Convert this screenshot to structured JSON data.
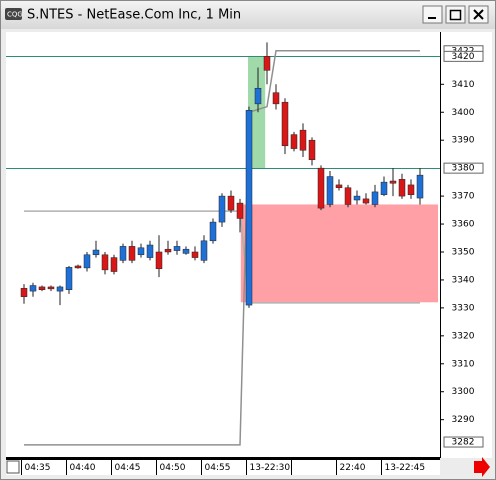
{
  "window": {
    "title": "S.NTES - NetEase.Com Inc, 1 Min"
  },
  "chart_data": {
    "type": "candlestick",
    "categories": [
      "04:35",
      null,
      null,
      null,
      null,
      "04:40",
      null,
      null,
      null,
      null,
      "04:45",
      null,
      null,
      null,
      null,
      "04:50",
      null,
      null,
      null,
      null,
      "04:55",
      null,
      null,
      null,
      null,
      "13-22:30",
      null,
      null,
      null,
      null,
      null,
      null,
      null,
      null,
      null,
      "22:40",
      null,
      null,
      null,
      null,
      "13-22:45",
      null,
      null,
      null,
      null
    ],
    "open": [
      3337,
      3336,
      3337.5,
      3337.5,
      3336,
      3336.5,
      3345,
      3344.3,
      3349,
      3349,
      3348,
      3347,
      3352,
      3349,
      3348,
      3350,
      3351,
      3350.5,
      3349.5,
      3350,
      3347,
      3354,
      3360.7,
      3370,
      3367.5,
      3331,
      3403,
      3420,
      3407,
      3403.6,
      3392,
      3393.6,
      3390,
      3380,
      3367,
      3374,
      3373,
      3368.6,
      3369,
      3367,
      3370.5,
      3375.4,
      3376,
      3374,
      3369.3
    ],
    "high": [
      3338.5,
      3339,
      3338,
      3338,
      3338,
      3345,
      3345.5,
      3350,
      3354,
      3350,
      3349,
      3353,
      3354,
      3353,
      3354,
      3356,
      3354,
      3354,
      3352,
      3352,
      3356,
      3362,
      3371,
      3372,
      3369,
      3402,
      3416,
      3425,
      3410,
      3405,
      3393,
      3396,
      3391,
      3381,
      3379,
      3376,
      3374,
      3372,
      3371,
      3374,
      3377,
      3380,
      3378,
      3376,
      3380
    ],
    "low": [
      3331.5,
      3334,
      3336,
      3336,
      3331,
      3335,
      3344,
      3343,
      3348,
      3342,
      3342,
      3346,
      3346,
      3348,
      3347,
      3341,
      3349,
      3349,
      3349,
      3347,
      3346,
      3353,
      3359,
      3364,
      3357,
      3330,
      3400,
      3410,
      3401,
      3385,
      3386,
      3384,
      3381,
      3365,
      3366,
      3372,
      3366,
      3367,
      3367,
      3366,
      3370,
      3370,
      3369,
      3369,
      3367
    ],
    "close": [
      3334,
      3338,
      3336.5,
      3336.8,
      3337.5,
      3344.5,
      3344.3,
      3349,
      3350.7,
      3343.6,
      3343,
      3352,
      3347,
      3351.5,
      3352.5,
      3344,
      3350,
      3352,
      3351,
      3348,
      3354,
      3360.7,
      3370,
      3365,
      3362,
      3400.7,
      3408.6,
      3415,
      3403,
      3388,
      3387,
      3386.4,
      3383,
      3365.7,
      3377,
      3373,
      3367,
      3370,
      3367.5,
      3371.5,
      3375,
      3374.6,
      3370,
      3370.5,
      3377.5
    ],
    "up_color": "#1e6fd6",
    "down_color": "#d81818",
    "series": [
      {
        "color": "#b0b0b0",
        "values": [
          3364.6,
          3364.6,
          3364.6,
          3364.6,
          3364.6,
          3364.6,
          3364.6,
          3364.6,
          3364.6,
          3364.6,
          3364.6,
          3364.6,
          3364.6,
          3364.6,
          3364.6,
          3364.6,
          3364.6,
          3364.6,
          3364.6,
          3364.6,
          3364.6,
          3364.6,
          3364.6,
          3364.6,
          3364.6,
          3331.8,
          3331.8,
          3331.8,
          3331.8,
          3331.8,
          3331.8,
          3331.8,
          3331.8,
          3331.8,
          3331.8,
          3331.8,
          3331.8,
          3331.8,
          3331.8,
          3331.8,
          3331.8,
          3331.8,
          3331.8,
          3331.8,
          3331.8
        ]
      },
      {
        "color": "#909090",
        "values": [
          3281,
          3281,
          3281,
          3281,
          3281,
          3281,
          3281,
          3281,
          3281,
          3281,
          3281,
          3281,
          3281,
          3281,
          3281,
          3281,
          3281,
          3281,
          3281,
          3281,
          3281,
          3281,
          3281,
          3281,
          3281,
          3400,
          3401,
          3402,
          3422,
          3422,
          3422,
          3422,
          3422,
          3422,
          3422,
          3422,
          3422,
          3422,
          3422,
          3422,
          3422,
          3422,
          3422,
          3422,
          3422
        ]
      }
    ],
    "zones": [
      {
        "from": 25,
        "to": 26.8,
        "low": 3380,
        "high": 3420,
        "color": "#8fd49c"
      },
      {
        "from": 24.2,
        "to": 46,
        "low": 3332,
        "high": 3367,
        "color": "#ff8f98"
      }
    ],
    "hlines": [
      3420,
      3380
    ],
    "hline_color": "#2e8b7a",
    "markers": [
      3422,
      3420,
      3380,
      3282
    ],
    "ylim": [
      3277,
      3428
    ],
    "yticks": [
      3290,
      3300,
      3310,
      3320,
      3330,
      3340,
      3350,
      3360,
      3370,
      3390,
      3400,
      3410
    ]
  }
}
